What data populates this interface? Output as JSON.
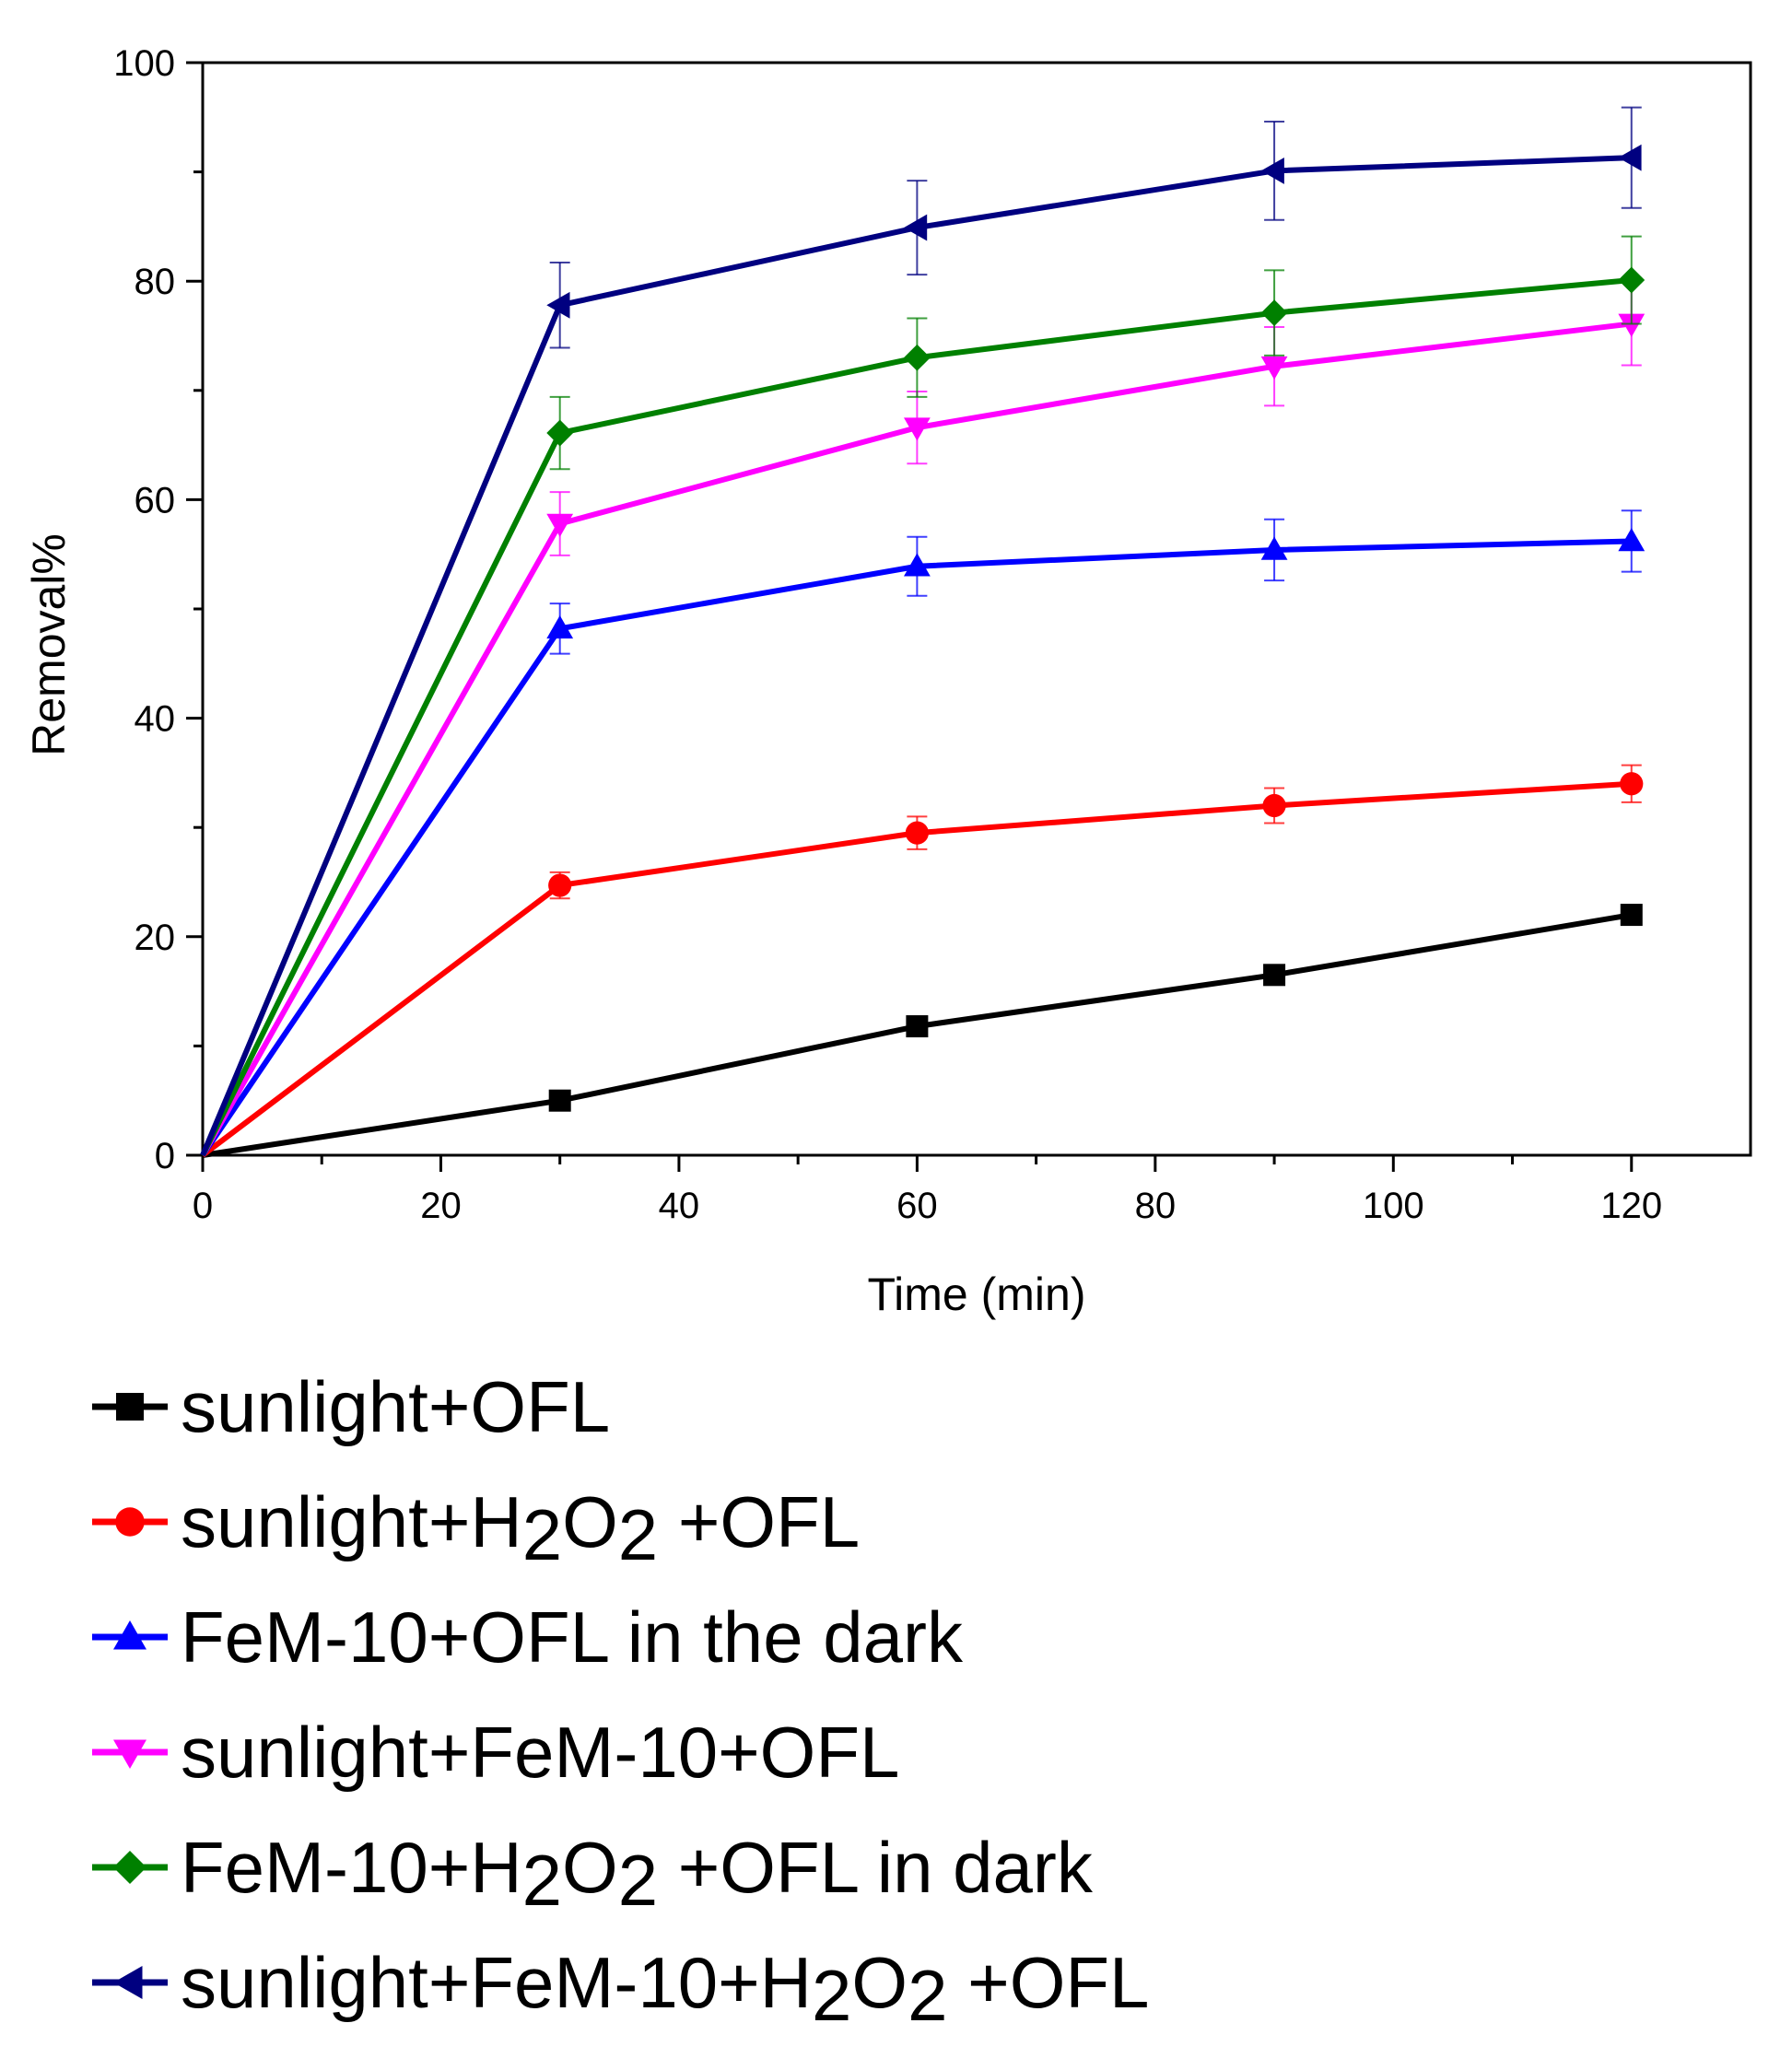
{
  "chart_data": {
    "type": "line",
    "title": "",
    "xlabel": "Time (min)",
    "ylabel": "Removal%",
    "xlim": [
      0,
      130
    ],
    "ylim": [
      0,
      100
    ],
    "xticks": [
      0,
      20,
      40,
      60,
      80,
      100,
      120
    ],
    "yticks": [
      0,
      20,
      40,
      60,
      80,
      100
    ],
    "grid": false,
    "legend_position": "below",
    "x": [
      0,
      30,
      60,
      90,
      120
    ],
    "series": [
      {
        "name": "sunlight+OFL",
        "color": "#000000",
        "marker": "square",
        "values": [
          0,
          5,
          11.8,
          16.5,
          22
        ],
        "errors": [
          0,
          0,
          0,
          0,
          0
        ]
      },
      {
        "name": "sunlight+H2O2 +OFL",
        "color": "#ff0000",
        "marker": "circle",
        "values": [
          0,
          24.7,
          29.5,
          32,
          34
        ],
        "errors": [
          0,
          1.2,
          1.5,
          1.6,
          1.7
        ]
      },
      {
        "name": "FeM-10+OFL in the dark",
        "color": "#0000ff",
        "marker": "triangle-up",
        "values": [
          0,
          48.2,
          53.9,
          55.4,
          56.2
        ],
        "errors": [
          0,
          2.3,
          2.7,
          2.8,
          2.8
        ]
      },
      {
        "name": "sunlight+FeM-10+OFL",
        "color": "#ff00ff",
        "marker": "triangle-down",
        "values": [
          0,
          57.8,
          66.6,
          72.2,
          76.1
        ],
        "errors": [
          0,
          2.9,
          3.3,
          3.6,
          3.8
        ]
      },
      {
        "name": "FeM-10+H2O2 +OFL in dark",
        "color": "#008000",
        "marker": "diamond",
        "values": [
          0,
          66.1,
          73,
          77.1,
          80.1
        ],
        "errors": [
          0,
          3.3,
          3.6,
          3.9,
          4
        ]
      },
      {
        "name": "sunlight+FeM-10+H2O2 +OFL",
        "color": "#000080",
        "marker": "triangle-left",
        "values": [
          0,
          77.8,
          84.9,
          90.1,
          91.3
        ],
        "errors": [
          0,
          3.9,
          4.3,
          4.5,
          4.6
        ]
      }
    ]
  },
  "legend": {
    "items": [
      {
        "parts": [
          {
            "t": "sunlight+OFL"
          }
        ]
      },
      {
        "parts": [
          {
            "t": "sunlight+H"
          },
          {
            "t": "2",
            "sub": true
          },
          {
            "t": "O"
          },
          {
            "t": "2",
            "sub": true
          },
          {
            "t": " +OFL"
          }
        ]
      },
      {
        "parts": [
          {
            "t": "FeM-10+OFL in the dark"
          }
        ]
      },
      {
        "parts": [
          {
            "t": "sunlight+FeM-10+OFL"
          }
        ]
      },
      {
        "parts": [
          {
            "t": "FeM-10+H"
          },
          {
            "t": "2",
            "sub": true
          },
          {
            "t": "O"
          },
          {
            "t": "2",
            "sub": true
          },
          {
            "t": " +OFL in dark"
          }
        ]
      },
      {
        "parts": [
          {
            "t": "sunlight+FeM-10+H"
          },
          {
            "t": "2",
            "sub": true
          },
          {
            "t": "O"
          },
          {
            "t": "2",
            "sub": true
          },
          {
            "t": " +OFL"
          }
        ]
      }
    ]
  }
}
